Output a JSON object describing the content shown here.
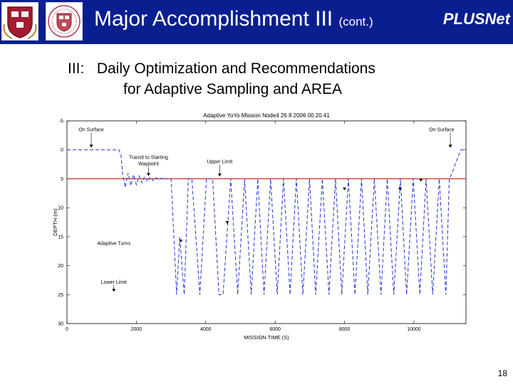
{
  "header": {
    "title": "Major Accomplishment III",
    "title_suffix": "(cont.)",
    "brand": "PLUSNet",
    "background_color": "#0a1f8f",
    "logos": [
      "harvard-shield-logo",
      "harvard-seal-logo"
    ]
  },
  "subtitle": {
    "line1": "III:   Daily Optimization and Recommendations",
    "line2": "for Adaptive Sampling and AREA"
  },
  "chart_data": {
    "type": "line",
    "title": "Adaptive YoYo Mission Node4 26 8 2006    00 20 41",
    "xlabel": "MISSION TIME (S)",
    "ylabel": "DEPTH (m)",
    "xlim": [
      0,
      11500
    ],
    "ylim": [
      30,
      -5
    ],
    "xticks": [
      0,
      2000,
      4000,
      6000,
      8000,
      10000
    ],
    "yticks": [
      -5,
      0,
      5,
      10,
      15,
      20,
      25,
      30
    ],
    "ytick_labels": [
      "-5",
      "0",
      "5",
      "10",
      "15",
      "20",
      "25",
      "30"
    ],
    "grid": false,
    "reference_line": {
      "depth": 5,
      "color": "#cc0000"
    },
    "series": [
      {
        "color": "#2233cc",
        "style": "dashed",
        "x": [
          0,
          1500,
          1560,
          1600,
          1680,
          1760,
          1840,
          1920,
          2000,
          2080,
          2160,
          2240,
          2320,
          2400,
          2480,
          2560,
          2640,
          2720,
          2800,
          2880,
          2960,
          3000,
          3160,
          3250,
          3380,
          3500,
          3600,
          3830,
          4020,
          4100,
          4200,
          4380,
          4500,
          4720,
          4920,
          5120,
          5310,
          5500,
          5680,
          5870,
          6060,
          6240,
          6430,
          6610,
          6800,
          6990,
          7170,
          7360,
          7550,
          7740,
          7920,
          8110,
          8300,
          8490,
          8670,
          8860,
          9050,
          9230,
          9420,
          9610,
          9790,
          9980,
          10170,
          10350,
          10540,
          10730,
          10920,
          11020,
          11100,
          11220,
          11350,
          11500
        ],
        "y": [
          0,
          0,
          1,
          4,
          6.5,
          4,
          6.2,
          4.3,
          6,
          4.5,
          5.7,
          4.6,
          5.5,
          4.7,
          5.3,
          4.8,
          5.2,
          4.9,
          5.1,
          5,
          5,
          5,
          25,
          15,
          25,
          5,
          5,
          25,
          5,
          5,
          5,
          25,
          25,
          5,
          25,
          5,
          25,
          5,
          25,
          5,
          25,
          5,
          25,
          5,
          25,
          5,
          25,
          5,
          25,
          5,
          25,
          5,
          25,
          5,
          25,
          5,
          25,
          5,
          25,
          5,
          25,
          5,
          25,
          5,
          25,
          5,
          25,
          5,
          4,
          2,
          0,
          0
        ]
      }
    ],
    "annotations": [
      {
        "text": "On Surface",
        "x": 700,
        "y": -3.2,
        "arrow_x": 700,
        "arrow_y": -0.4
      },
      {
        "text": "Transit to Starting\nWaypoint",
        "x": 2350,
        "y": 1.6,
        "arrow_x": 2350,
        "arrow_y": 4.5
      },
      {
        "text": "Upper Limit",
        "x": 4400,
        "y": 2.3,
        "arrow_x": 4400,
        "arrow_y": 4.6
      },
      {
        "text": "On Surface",
        "x": 10800,
        "y": -3.2,
        "arrow_x": 11050,
        "arrow_y": -0.4
      },
      {
        "text": "Adaptive Turns",
        "x": 1350,
        "y": 16.4,
        "arrow_x": null,
        "arrow_y": null
      },
      {
        "text": "Lower Limit",
        "x": 1350,
        "y": 23.1,
        "arrow_x": 1350,
        "arrow_y": 24.5
      }
    ],
    "turn_markers": [
      {
        "x": 3280,
        "y": 16
      },
      {
        "x": 4620,
        "y": 12.8
      },
      {
        "x": 8000,
        "y": 7
      },
      {
        "x": 9600,
        "y": 7
      },
      {
        "x": 10200,
        "y": 5.5
      }
    ]
  },
  "page_number": "18"
}
